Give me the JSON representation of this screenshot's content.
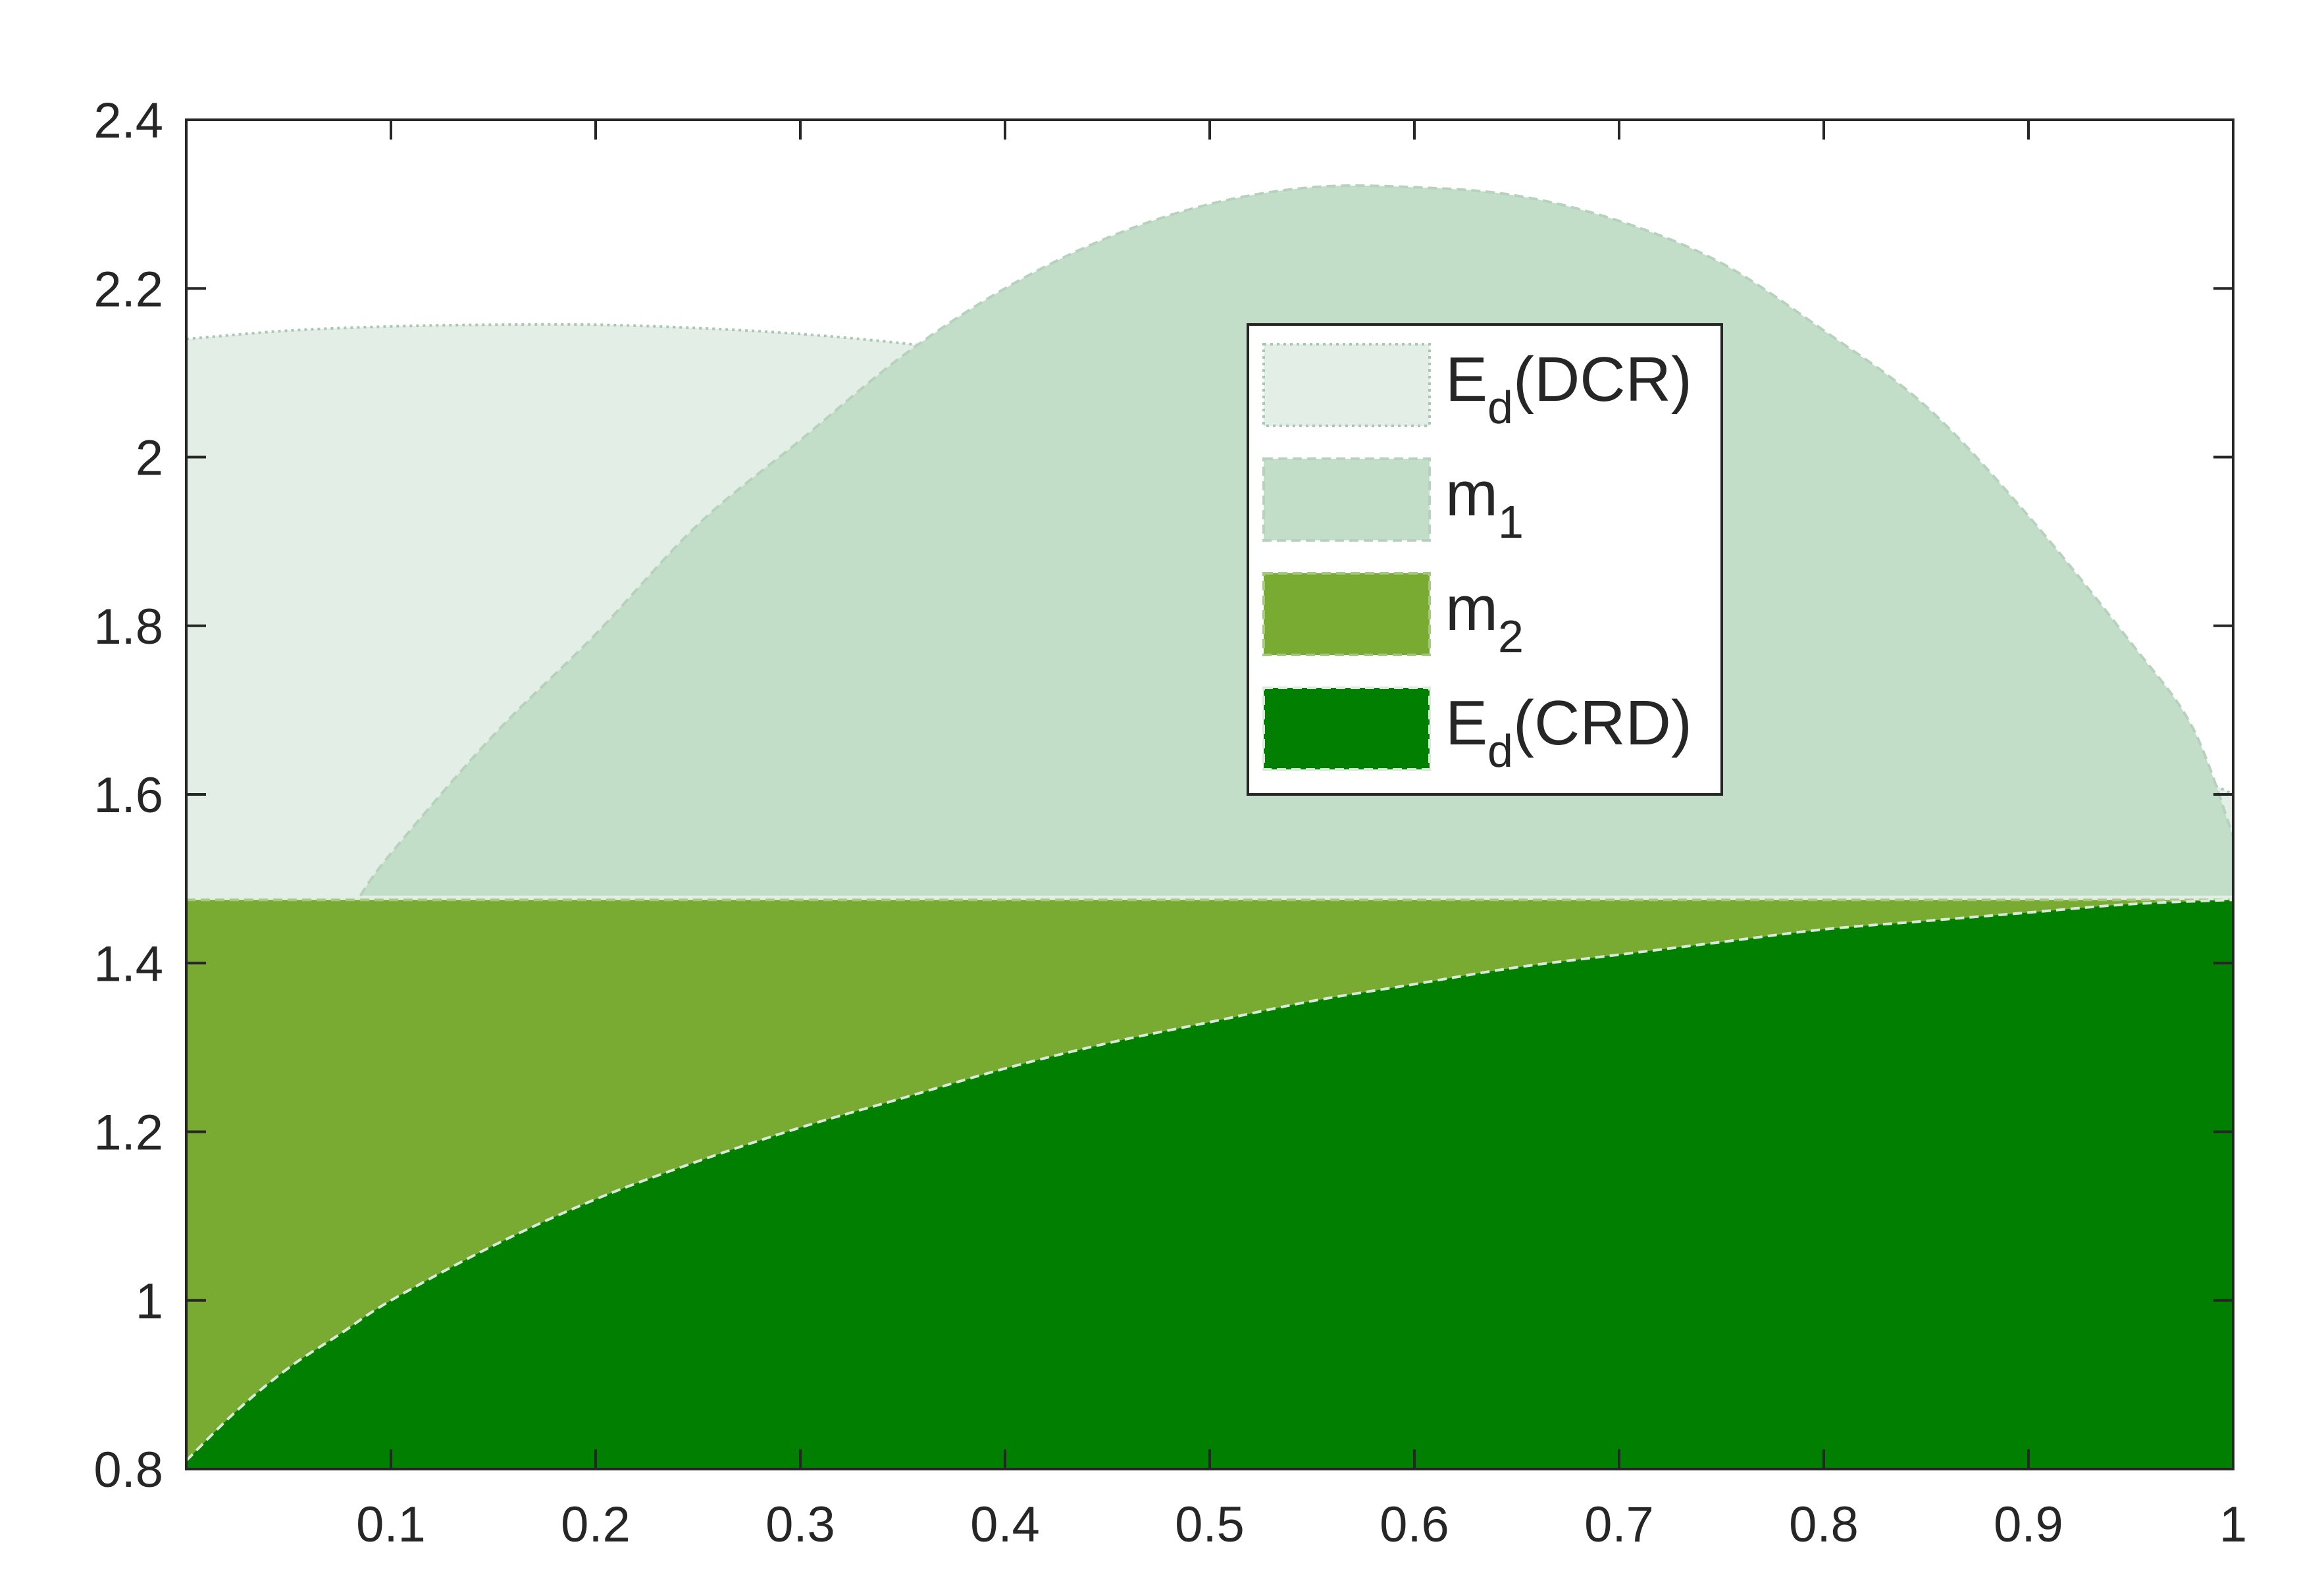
{
  "chart_data": {
    "type": "area",
    "title": "",
    "xlabel": "",
    "ylabel": "",
    "xlim": [
      0,
      1
    ],
    "ylim": [
      0.8,
      2.4
    ],
    "xticks": [
      0.1,
      0.2,
      0.3,
      0.4,
      0.5,
      0.6,
      0.7,
      0.8,
      0.9,
      1
    ],
    "xtick_labels": [
      "0.1",
      "0.2",
      "0.3",
      "0.4",
      "0.5",
      "0.6",
      "0.7",
      "0.8",
      "0.9",
      "1"
    ],
    "yticks": [
      0.8,
      1,
      1.2,
      1.4,
      1.6,
      1.8,
      2,
      2.2,
      2.4
    ],
    "ytick_labels": [
      "0.8",
      "1",
      "1.2",
      "1.4",
      "1.6",
      "1.8",
      "2",
      "2.2",
      "2.4"
    ],
    "grid": false,
    "legend_position": "upper-center-right",
    "series": [
      {
        "name": "E_d(DCR)",
        "label_main": "E",
        "label_sub": "d",
        "label_suffix": "(DCR)",
        "color": "#e3efe6",
        "edge_color": "#a9c8b1",
        "edge_style": "dotted",
        "baseline": 0.8,
        "x": [
          0,
          0.05,
          0.1,
          0.15,
          0.2,
          0.25,
          0.3,
          0.35,
          0.4,
          0.45,
          0.5,
          0.55,
          0.6,
          0.65,
          0.7,
          0.75,
          0.8,
          0.85,
          0.9,
          0.95,
          1
        ],
        "y": [
          2.14,
          2.15,
          2.155,
          2.157,
          2.157,
          2.153,
          2.146,
          2.135,
          2.12,
          2.1,
          2.08,
          2.05,
          2.02,
          1.98,
          1.94,
          1.89,
          1.84,
          1.78,
          1.72,
          1.66,
          1.6
        ]
      },
      {
        "name": "m_1",
        "label_main": "m",
        "label_sub": "1",
        "label_suffix": "",
        "color": "#c2dec8",
        "edge_color": "#b6d2bc",
        "edge_style": "dashed",
        "baseline": 1.48,
        "x": [
          0.085,
          0.1,
          0.15,
          0.2,
          0.25,
          0.3,
          0.35,
          0.4,
          0.45,
          0.5,
          0.55,
          0.6,
          0.65,
          0.7,
          0.75,
          0.8,
          0.85,
          0.9,
          0.95,
          0.98,
          1
        ],
        "y": [
          1.48,
          1.53,
          1.67,
          1.79,
          1.92,
          2.02,
          2.12,
          2.2,
          2.26,
          2.3,
          2.32,
          2.32,
          2.31,
          2.28,
          2.23,
          2.15,
          2.06,
          1.93,
          1.78,
          1.68,
          1.55
        ]
      },
      {
        "name": "m_2",
        "label_main": "m",
        "label_sub": "2",
        "label_suffix": "",
        "color": "#79ab33",
        "edge_color": "#a6c982",
        "edge_style": "dashed",
        "baseline": 0.8,
        "x": [
          0,
          1
        ],
        "y": [
          1.475,
          1.475
        ]
      },
      {
        "name": "E_d(CRD)",
        "label_main": "E",
        "label_sub": "d",
        "label_suffix": "(CRD)",
        "color": "#007f00",
        "edge_color": "#dbe9db",
        "edge_style": "dashed",
        "baseline": 0.8,
        "x": [
          0,
          0.025,
          0.05,
          0.075,
          0.1,
          0.15,
          0.2,
          0.25,
          0.3,
          0.35,
          0.4,
          0.45,
          0.5,
          0.55,
          0.6,
          0.65,
          0.7,
          0.75,
          0.8,
          0.85,
          0.9,
          0.95,
          1
        ],
        "y": [
          0.81,
          0.87,
          0.92,
          0.96,
          1.0,
          1.065,
          1.12,
          1.165,
          1.205,
          1.24,
          1.275,
          1.305,
          1.33,
          1.355,
          1.375,
          1.395,
          1.41,
          1.425,
          1.44,
          1.45,
          1.46,
          1.47,
          1.475
        ]
      }
    ]
  }
}
